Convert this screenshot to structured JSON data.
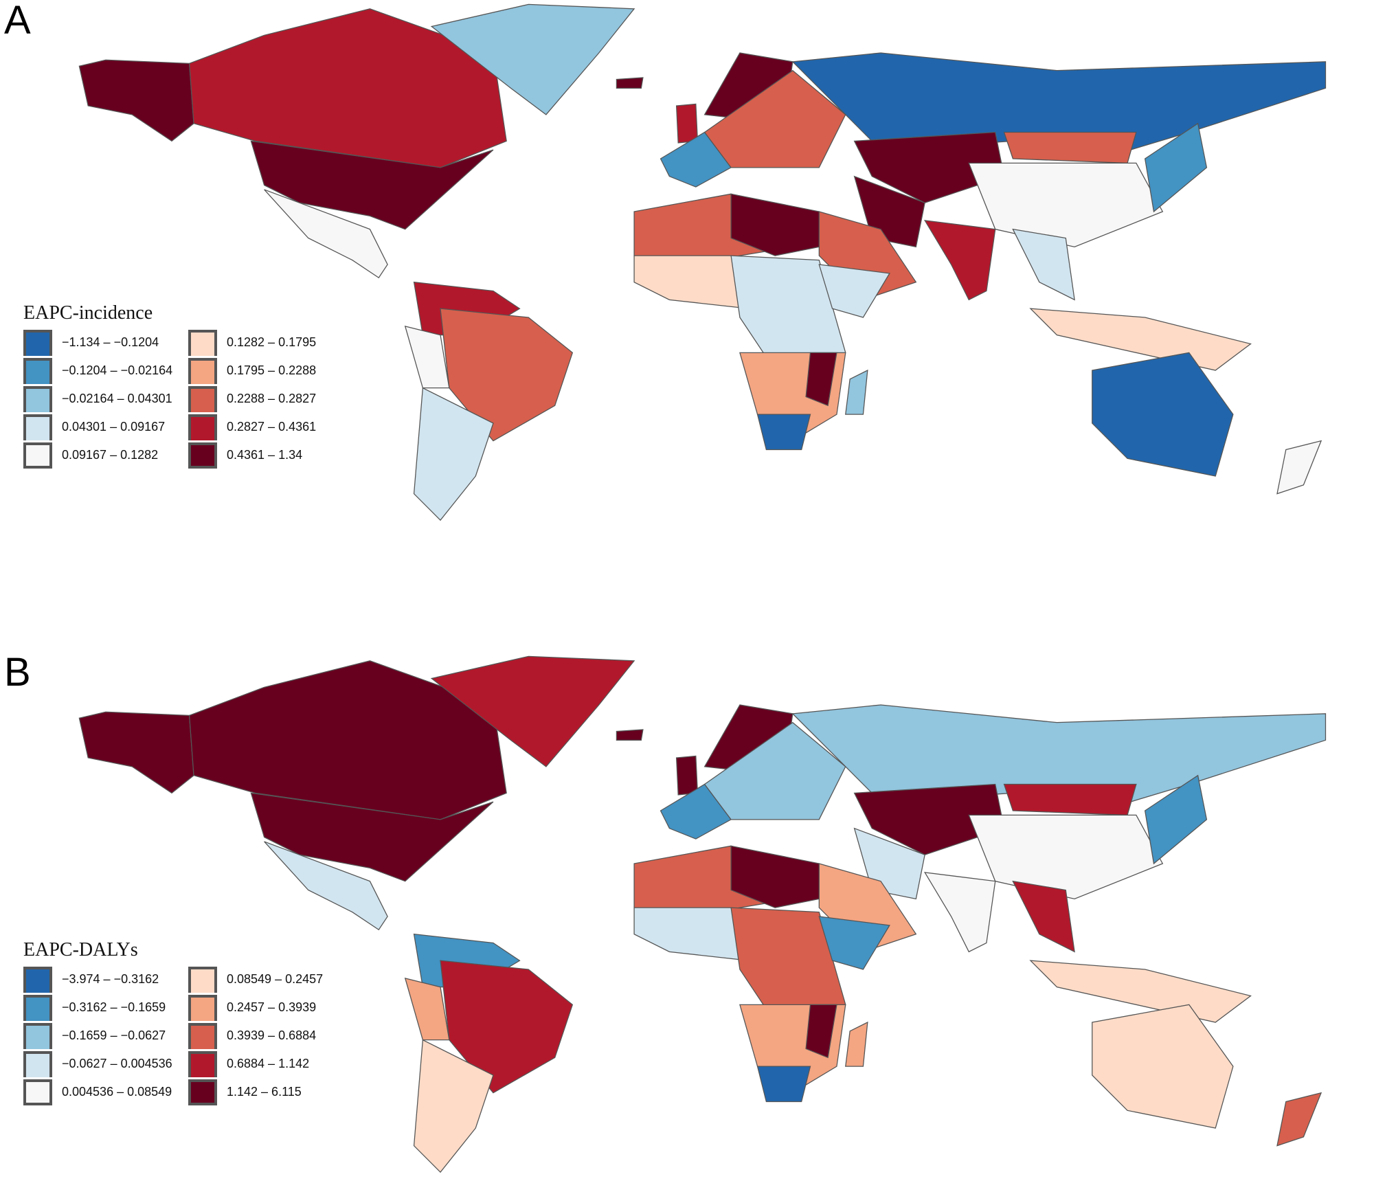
{
  "panels": [
    {
      "label": "A",
      "legend_title": "EAPC-incidence",
      "bins": [
        {
          "label": "−1.134 – −0.1204",
          "color": "#2166ac"
        },
        {
          "label": "−0.1204 – −0.02164",
          "color": "#4393c3"
        },
        {
          "label": "−0.02164 – 0.04301",
          "color": "#92c5de"
        },
        {
          "label": "0.04301 – 0.09167",
          "color": "#d1e5f0"
        },
        {
          "label": "0.09167 – 0.1282",
          "color": "#f7f7f7"
        },
        {
          "label": "0.1282 – 0.1795",
          "color": "#fddbc7"
        },
        {
          "label": "0.1795 – 0.2288",
          "color": "#f4a582"
        },
        {
          "label": "0.2288 – 0.2827",
          "color": "#d6604d"
        },
        {
          "label": "0.2827 – 0.4361",
          "color": "#b2182b"
        },
        {
          "label": "0.4361 – 1.34",
          "color": "#67001f"
        }
      ],
      "region_bins": {
        "alaska": 9,
        "canada": 8,
        "greenland": 2,
        "usa": 9,
        "central-america": 4,
        "northern-south-america": 8,
        "brazil": 7,
        "andes": 4,
        "southern-cone": 3,
        "iceland": 9,
        "uk": 8,
        "western-europe": 1,
        "scandinavia": 9,
        "central-europe": 7,
        "russia": 0,
        "central-asia": 9,
        "mongolia": 7,
        "china": 4,
        "iran": 9,
        "arabia": 7,
        "india": 8,
        "southeast-asia": 3,
        "japan": 1,
        "indonesia": 5,
        "australia": 0,
        "new-zealand": 4,
        "north-africa": 7,
        "libya-egypt": 9,
        "west-africa": 5,
        "central-africa": 3,
        "east-africa": 3,
        "southern-africa": 6,
        "mozambique": 9,
        "south-africa": 0,
        "madagascar": 2
      }
    },
    {
      "label": "B",
      "legend_title": "EAPC-DALYs",
      "bins": [
        {
          "label": "−3.974 – −0.3162",
          "color": "#2166ac"
        },
        {
          "label": "−0.3162 – −0.1659",
          "color": "#4393c3"
        },
        {
          "label": "−0.1659 – −0.0627",
          "color": "#92c5de"
        },
        {
          "label": "−0.0627 – 0.004536",
          "color": "#d1e5f0"
        },
        {
          "label": "0.004536 – 0.08549",
          "color": "#f7f7f7"
        },
        {
          "label": "0.08549 – 0.2457",
          "color": "#fddbc7"
        },
        {
          "label": "0.2457 – 0.3939",
          "color": "#f4a582"
        },
        {
          "label": "0.3939 – 0.6884",
          "color": "#d6604d"
        },
        {
          "label": "0.6884 – 1.142",
          "color": "#b2182b"
        },
        {
          "label": "1.142 – 6.115",
          "color": "#67001f"
        }
      ],
      "region_bins": {
        "alaska": 9,
        "canada": 9,
        "greenland": 8,
        "usa": 9,
        "central-america": 3,
        "northern-south-america": 1,
        "brazil": 8,
        "andes": 6,
        "southern-cone": 5,
        "iceland": 9,
        "uk": 9,
        "western-europe": 1,
        "scandinavia": 9,
        "central-europe": 2,
        "russia": 2,
        "central-asia": 9,
        "mongolia": 8,
        "china": 4,
        "iran": 3,
        "arabia": 6,
        "india": 4,
        "southeast-asia": 8,
        "japan": 1,
        "indonesia": 5,
        "australia": 5,
        "new-zealand": 7,
        "north-africa": 7,
        "libya-egypt": 9,
        "west-africa": 3,
        "central-africa": 7,
        "east-africa": 1,
        "southern-africa": 6,
        "mozambique": 9,
        "south-africa": 0,
        "madagascar": 6
      }
    }
  ]
}
